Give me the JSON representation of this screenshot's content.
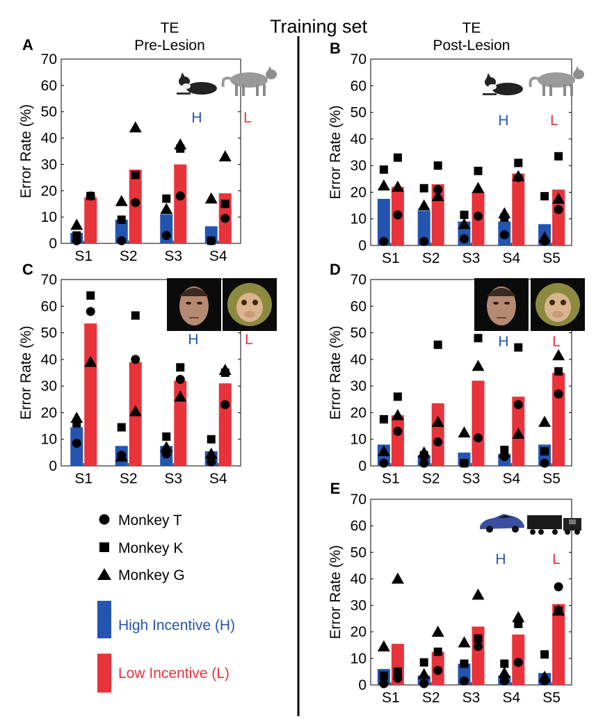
{
  "figure": {
    "title": "Training set",
    "left_header_line1": "TE",
    "left_header_line2": "Pre-Lesion",
    "right_header_line1": "TE",
    "right_header_line2": "Post-Lesion"
  },
  "colors": {
    "high": "#2354b0",
    "low": "#e8333a",
    "high_text": "#2354b0",
    "low_text": "#e8333a"
  },
  "legend": {
    "monkey_t": "Monkey T",
    "monkey_k": "Monkey K",
    "monkey_g": "Monkey G",
    "high_incentive": "High Incentive (H)",
    "low_incentive": "Low Incentive (L)"
  },
  "chart_data": [
    {
      "panel": "A",
      "type": "bar",
      "ylabel": "Error Rate (%)",
      "ylim": [
        0,
        70
      ],
      "yticks": [
        0,
        10,
        20,
        30,
        40,
        50,
        60,
        70
      ],
      "categories": [
        "S1",
        "S2",
        "S3",
        "S4"
      ],
      "h_label": "H",
      "l_label": "L",
      "image_icons": [
        "dog-icon",
        "cat-icon"
      ],
      "series": [
        {
          "name": "High Incentive (H)",
          "values": [
            4,
            9,
            11,
            6.5
          ],
          "monkey_t": [
            1,
            1,
            3,
            1
          ],
          "monkey_k": [
            3,
            9,
            17,
            1
          ],
          "monkey_g": [
            7,
            16,
            13,
            17
          ]
        },
        {
          "name": "Low Incentive (L)",
          "values": [
            17.5,
            28,
            30,
            19
          ],
          "monkey_t": [
            18,
            15.5,
            18,
            9.5
          ],
          "monkey_k": [
            18,
            26,
            36,
            15
          ],
          "monkey_g": [
            null,
            44,
            37.5,
            33
          ]
        }
      ]
    },
    {
      "panel": "B",
      "type": "bar",
      "ylabel": "Error Rate (%)",
      "ylim": [
        0,
        70
      ],
      "yticks": [
        0,
        10,
        20,
        30,
        40,
        50,
        60,
        70
      ],
      "categories": [
        "S1",
        "S2",
        "S3",
        "S4",
        "S5"
      ],
      "h_label": "H",
      "l_label": "L",
      "image_icons": [
        "dog-icon",
        "cat-icon"
      ],
      "series": [
        {
          "name": "High Incentive (H)",
          "values": [
            17.5,
            13,
            9,
            9,
            8
          ],
          "monkey_t": [
            1.5,
            1.5,
            2.5,
            4,
            1.5
          ],
          "monkey_k": [
            28.5,
            21.5,
            11.5,
            10.5,
            18.5
          ],
          "monkey_g": [
            22.5,
            15,
            8,
            12,
            3
          ]
        },
        {
          "name": "Low Incentive (L)",
          "values": [
            22,
            23,
            20,
            27,
            21
          ],
          "monkey_t": [
            11.5,
            21,
            11,
            25.5,
            13.5
          ],
          "monkey_k": [
            33,
            30,
            28,
            31,
            33.5
          ],
          "monkey_g": [
            22,
            18.5,
            21.5,
            26,
            17.5
          ]
        }
      ]
    },
    {
      "panel": "C",
      "type": "bar",
      "ylabel": "Error Rate (%)",
      "ylim": [
        0,
        70
      ],
      "yticks": [
        0,
        10,
        20,
        30,
        40,
        50,
        60,
        70
      ],
      "categories": [
        "S1",
        "S2",
        "S3",
        "S4"
      ],
      "h_label": "H",
      "l_label": "L",
      "image_icons": [
        "human-face-icon",
        "monkey-face-icon"
      ],
      "series": [
        {
          "name": "High Incentive (H)",
          "values": [
            14.5,
            7.5,
            7.5,
            5.5
          ],
          "monkey_t": [
            8.5,
            4,
            4.5,
            1.5
          ],
          "monkey_k": [
            16,
            14.5,
            11,
            10
          ],
          "monkey_g": [
            18,
            3.5,
            7,
            4.5
          ]
        },
        {
          "name": "Low Incentive (L)",
          "values": [
            53.5,
            39,
            32,
            31
          ],
          "monkey_t": [
            58,
            40,
            32.5,
            23
          ],
          "monkey_k": [
            64,
            56.5,
            37,
            35
          ],
          "monkey_g": [
            39,
            20.5,
            26,
            36
          ]
        }
      ]
    },
    {
      "panel": "D",
      "type": "bar",
      "ylabel": "Error Rate (%)",
      "ylim": [
        0,
        70
      ],
      "yticks": [
        0,
        10,
        20,
        30,
        40,
        50,
        60,
        70
      ],
      "categories": [
        "S1",
        "S2",
        "S3",
        "S4",
        "S5"
      ],
      "h_label": "H",
      "l_label": "L",
      "image_icons": [
        "human-face-icon",
        "monkey-face-icon"
      ],
      "series": [
        {
          "name": "High Incentive (H)",
          "values": [
            8,
            4,
            5,
            4.5,
            8
          ],
          "monkey_t": [
            1,
            1,
            1,
            3.5,
            1
          ],
          "monkey_k": [
            17.5,
            4,
            1,
            6,
            5.5
          ],
          "monkey_g": [
            5.5,
            5,
            12.5,
            5,
            16.5
          ]
        },
        {
          "name": "Low Incentive (L)",
          "values": [
            19,
            23.5,
            32,
            26,
            35
          ],
          "monkey_t": [
            13,
            9,
            10.5,
            23,
            27
          ],
          "monkey_k": [
            26,
            45.5,
            48,
            44.5,
            35.5
          ],
          "monkey_g": [
            19,
            16.5,
            37.5,
            12,
            41.5
          ]
        }
      ]
    },
    {
      "panel": "E",
      "type": "bar",
      "ylabel": "Error Rate (%)",
      "ylim": [
        0,
        70
      ],
      "yticks": [
        0,
        10,
        20,
        30,
        40,
        50,
        60,
        70
      ],
      "categories": [
        "S1",
        "S2",
        "S3",
        "S4",
        "S5"
      ],
      "h_label": "H",
      "l_label": "L",
      "image_icons": [
        "car-icon",
        "truck-icon"
      ],
      "series": [
        {
          "name": "High Incentive (H)",
          "values": [
            6,
            3.5,
            8,
            3.5,
            4.5
          ],
          "monkey_t": [
            0.5,
            0.5,
            1.5,
            1.5,
            1.5
          ],
          "monkey_k": [
            3.5,
            8.5,
            8,
            8,
            11.5
          ],
          "monkey_g": [
            14.5,
            4,
            16,
            4.5,
            3
          ]
        },
        {
          "name": "Low Incentive (L)",
          "values": [
            15.5,
            12.5,
            22,
            19,
            30.5
          ],
          "monkey_t": [
            2.5,
            5.5,
            14.5,
            8.5,
            37
          ],
          "monkey_k": [
            5,
            12.5,
            17.5,
            23,
            28
          ],
          "monkey_g": [
            40,
            20,
            34,
            25.5,
            28
          ]
        }
      ]
    }
  ]
}
